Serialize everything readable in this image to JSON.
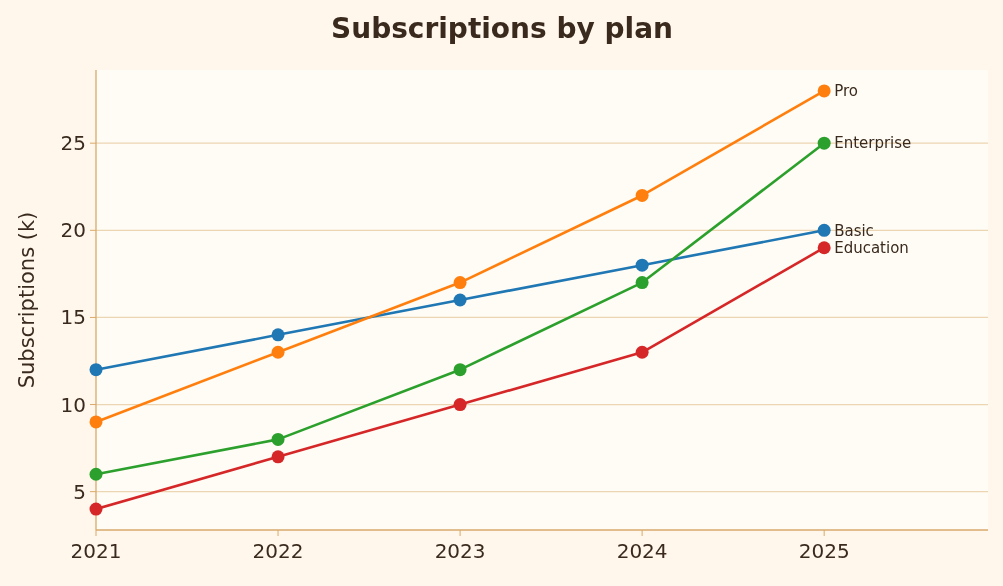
{
  "chart_data": {
    "type": "line",
    "title": "Subscriptions by plan",
    "ylabel": "Subscriptions (k)",
    "x": [
      2021,
      2022,
      2023,
      2024,
      2025
    ],
    "series": [
      {
        "name": "Basic",
        "color": "#1f77b4",
        "values": [
          12,
          14,
          16,
          18,
          20
        ]
      },
      {
        "name": "Pro",
        "color": "#ff7f0e",
        "values": [
          9,
          13,
          17,
          22,
          28
        ]
      },
      {
        "name": "Enterprise",
        "color": "#2ca02c",
        "values": [
          6,
          8,
          12,
          17,
          25
        ]
      },
      {
        "name": "Education",
        "color": "#d62728",
        "values": [
          4,
          7,
          10,
          13,
          19
        ]
      }
    ],
    "xlim": [
      2021,
      2025.9
    ],
    "ylim": [
      2.8,
      29.2
    ],
    "xticks": [
      2021,
      2022,
      2023,
      2024,
      2025
    ],
    "yticks": [
      5,
      10,
      15,
      20,
      25
    ],
    "grid": "y",
    "marker": "circle",
    "line_style": "solid"
  }
}
